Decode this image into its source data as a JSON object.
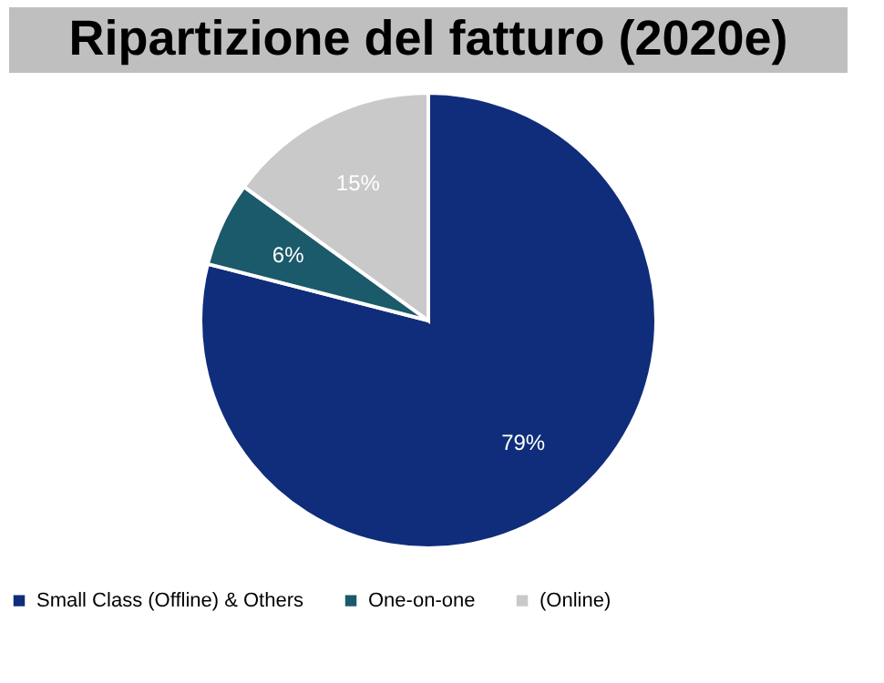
{
  "chart_data": {
    "type": "pie",
    "title": "Ripartizione del fatturo (2020e)",
    "categories": [
      "Small Class (Offline) & Others",
      "One-on-one",
      "(Online)"
    ],
    "values": [
      79,
      6,
      15
    ],
    "colors": [
      "#0f2d7a",
      "#1b5a6a",
      "#c9c9c9"
    ],
    "value_labels": [
      "79%",
      "6%",
      "15%"
    ],
    "legend": "bottom"
  }
}
